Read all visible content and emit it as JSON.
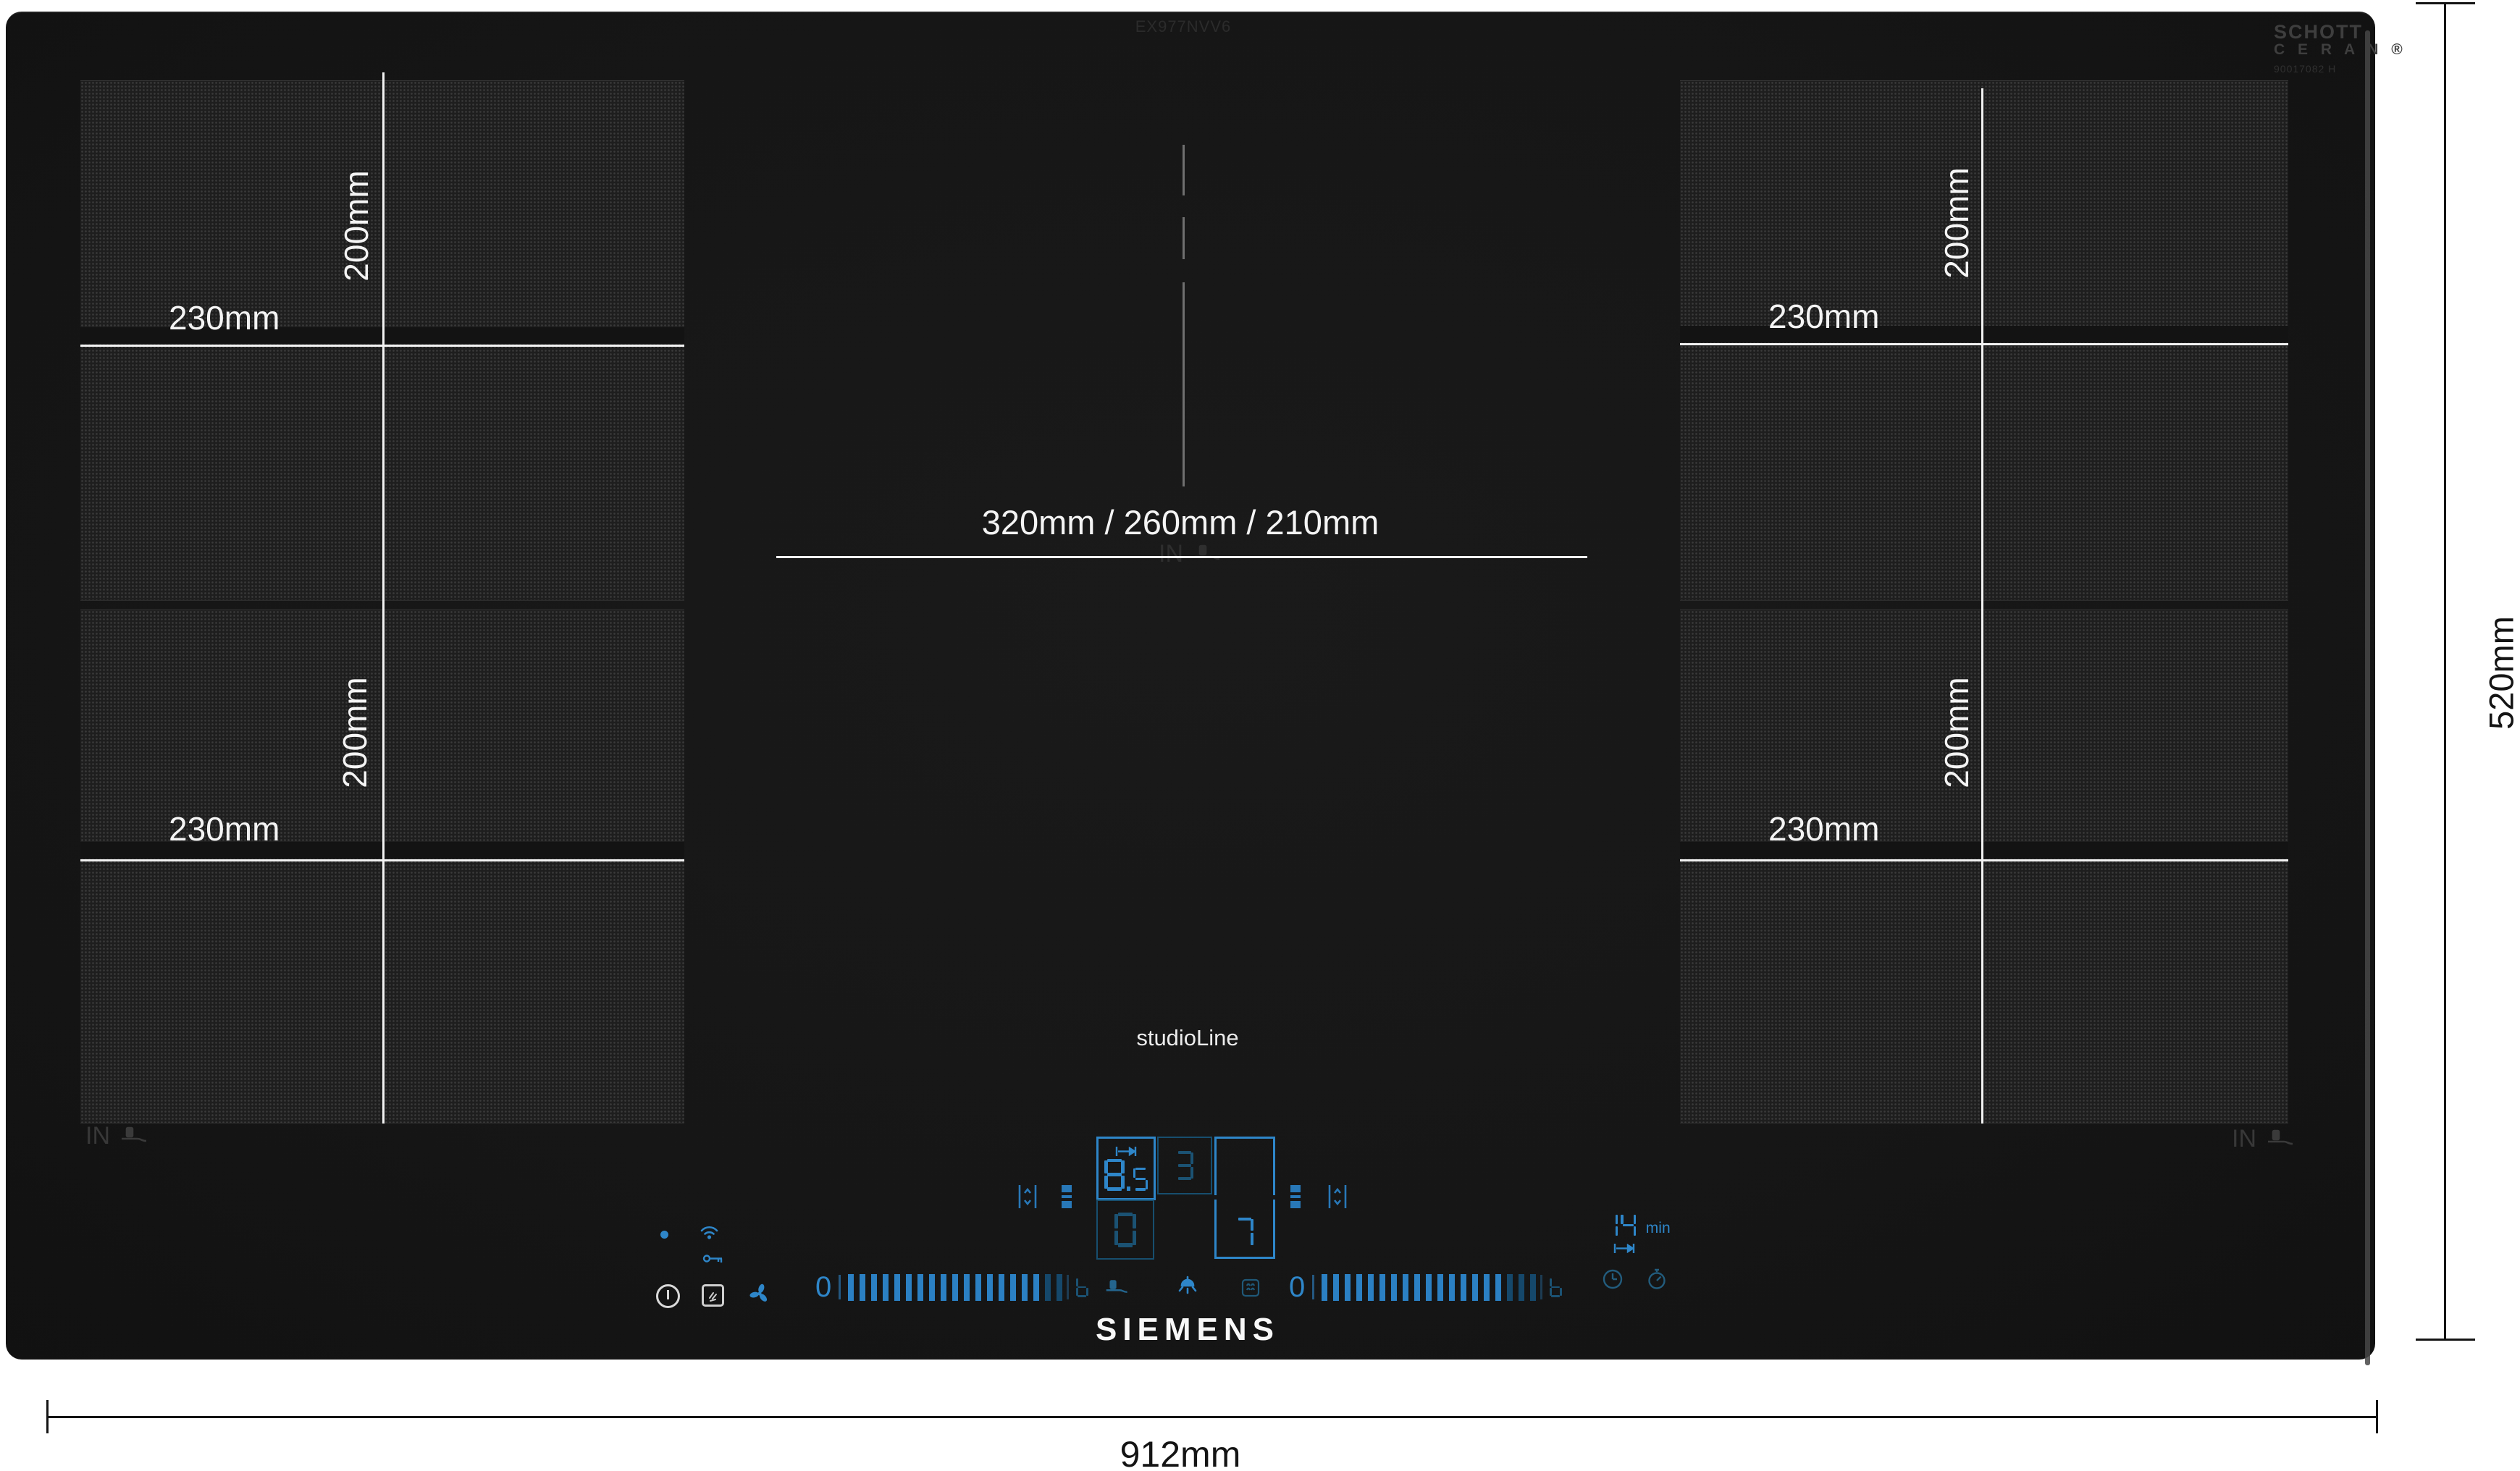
{
  "branding": {
    "manufacturer": "SIEMENS",
    "series": "studioLine",
    "model": "EX977NVV6",
    "glass_brand_line1": "SCHOTT",
    "glass_brand_line2": "C E R A N ®",
    "glass_brand_serial": "90017082 H"
  },
  "dimensions": {
    "overall_width": "912mm",
    "overall_depth": "520mm",
    "center_zone": "320mm / 260mm / 210mm"
  },
  "zones": {
    "induction_marker": "IN",
    "left_top": {
      "width": "230mm",
      "depth": "200mm"
    },
    "left_bottom": {
      "width": "230mm",
      "depth": "200mm"
    },
    "right_top": {
      "width": "230mm",
      "depth": "200mm"
    },
    "right_bottom": {
      "width": "230mm",
      "depth": "200mm"
    }
  },
  "controls": {
    "power_display_left": "8.5",
    "power_display_mid": "3",
    "power_display_bottom": "0",
    "power_display_right": "7",
    "timer": {
      "value": "14",
      "unit": "min"
    },
    "left_slider": {
      "zero_label": "0",
      "boost_label": "b",
      "bar_count": 19,
      "active_bars": 17
    },
    "right_slider": {
      "zero_label": "0",
      "boost_label": "b",
      "bar_count": 19,
      "active_bars": 16
    },
    "colors": {
      "accent": "#2e86c9",
      "accent_dim": "#1b5273"
    }
  }
}
